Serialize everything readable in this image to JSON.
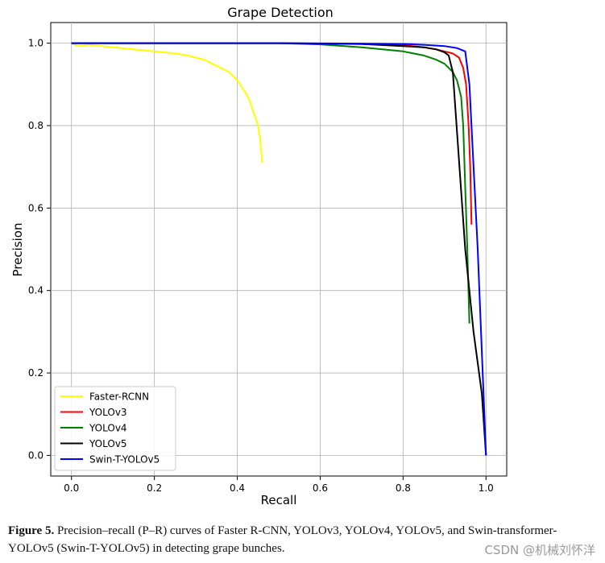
{
  "chart_data": {
    "type": "line",
    "title": "Grape Detection",
    "xlabel": "Recall",
    "ylabel": "Precision",
    "xlim": [
      -0.05,
      1.05
    ],
    "ylim": [
      -0.05,
      1.05
    ],
    "xticks": [
      0.0,
      0.2,
      0.4,
      0.6,
      0.8,
      1.0
    ],
    "yticks": [
      0.0,
      0.2,
      0.4,
      0.6,
      0.8,
      1.0
    ],
    "xtick_labels": [
      "0.0",
      "0.2",
      "0.4",
      "0.6",
      "0.8",
      "1.0"
    ],
    "ytick_labels": [
      "0.0",
      "0.2",
      "0.4",
      "0.6",
      "0.8",
      "1.0"
    ],
    "grid": true,
    "legend_position": "lower-left",
    "series": [
      {
        "name": "Faster-RCNN",
        "color": "#ffff00",
        "points": [
          [
            0.0,
            1.0
          ],
          [
            0.01,
            0.995
          ],
          [
            0.02,
            0.993
          ],
          [
            0.04,
            0.996
          ],
          [
            0.06,
            0.995
          ],
          [
            0.08,
            0.992
          ],
          [
            0.1,
            0.99
          ],
          [
            0.15,
            0.985
          ],
          [
            0.2,
            0.98
          ],
          [
            0.25,
            0.975
          ],
          [
            0.28,
            0.97
          ],
          [
            0.3,
            0.965
          ],
          [
            0.32,
            0.96
          ],
          [
            0.35,
            0.945
          ],
          [
            0.38,
            0.93
          ],
          [
            0.4,
            0.91
          ],
          [
            0.42,
            0.88
          ],
          [
            0.43,
            0.86
          ],
          [
            0.44,
            0.83
          ],
          [
            0.45,
            0.8
          ],
          [
            0.455,
            0.77
          ],
          [
            0.46,
            0.71
          ]
        ]
      },
      {
        "name": "YOLOv3",
        "color": "#ff0000",
        "points": [
          [
            0.0,
            1.0
          ],
          [
            0.5,
            1.0
          ],
          [
            0.7,
            0.998
          ],
          [
            0.8,
            0.995
          ],
          [
            0.85,
            0.99
          ],
          [
            0.88,
            0.985
          ],
          [
            0.9,
            0.98
          ],
          [
            0.92,
            0.975
          ],
          [
            0.935,
            0.965
          ],
          [
            0.945,
            0.94
          ],
          [
            0.952,
            0.9
          ],
          [
            0.958,
            0.8
          ],
          [
            0.962,
            0.7
          ],
          [
            0.965,
            0.56
          ]
        ]
      },
      {
        "name": "YOLOv4",
        "color": "#008000",
        "points": [
          [
            0.0,
            1.0
          ],
          [
            0.5,
            1.0
          ],
          [
            0.6,
            0.997
          ],
          [
            0.7,
            0.99
          ],
          [
            0.75,
            0.985
          ],
          [
            0.8,
            0.98
          ],
          [
            0.85,
            0.97
          ],
          [
            0.88,
            0.96
          ],
          [
            0.9,
            0.95
          ],
          [
            0.92,
            0.93
          ],
          [
            0.93,
            0.91
          ],
          [
            0.94,
            0.87
          ],
          [
            0.945,
            0.8
          ],
          [
            0.95,
            0.65
          ],
          [
            0.955,
            0.5
          ],
          [
            0.96,
            0.32
          ]
        ]
      },
      {
        "name": "YOLOv5",
        "color": "#000000",
        "points": [
          [
            0.0,
            1.0
          ],
          [
            0.5,
            1.0
          ],
          [
            0.7,
            0.998
          ],
          [
            0.8,
            0.993
          ],
          [
            0.85,
            0.99
          ],
          [
            0.88,
            0.985
          ],
          [
            0.9,
            0.978
          ],
          [
            0.91,
            0.97
          ],
          [
            0.915,
            0.95
          ],
          [
            0.92,
            0.93
          ],
          [
            0.95,
            0.5
          ],
          [
            0.97,
            0.3
          ],
          [
            0.99,
            0.15
          ],
          [
            1.0,
            0.0
          ]
        ]
      },
      {
        "name": "Swin-T-YOLOv5",
        "color": "#0000ff",
        "points": [
          [
            0.0,
            1.0
          ],
          [
            0.5,
            1.0
          ],
          [
            0.7,
            0.999
          ],
          [
            0.8,
            0.998
          ],
          [
            0.85,
            0.996
          ],
          [
            0.9,
            0.993
          ],
          [
            0.93,
            0.988
          ],
          [
            0.95,
            0.98
          ],
          [
            0.96,
            0.9
          ],
          [
            0.98,
            0.5
          ],
          [
            1.0,
            0.0
          ]
        ]
      }
    ]
  },
  "caption": {
    "label": "Figure 5.",
    "text": "Precision–recall (P–R) curves of Faster R-CNN, YOLOv3, YOLOv4, YOLOv5, and Swin-transformer-YOLOv5 (Swin-T-YOLOv5) in detecting grape bunches."
  },
  "watermark": "CSDN @机械刘怀洋"
}
